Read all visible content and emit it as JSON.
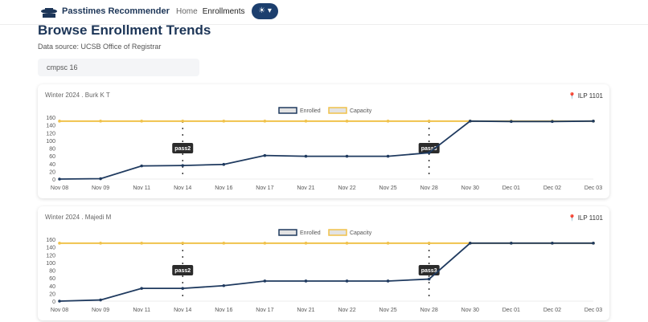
{
  "nav": {
    "brand": "Passtimes Recommender",
    "links": [
      "Home",
      "Enrollments"
    ],
    "theme_icon": "sun-icon"
  },
  "page": {
    "title": "Browse Enrollment Trends",
    "source": "Data source: UCSB Office of Registrar",
    "search_value": "cmpsc 16"
  },
  "colors": {
    "enrolled": "#1f3a5f",
    "capacity": "#f0c24b",
    "brand": "#1c3557"
  },
  "chart_data": [
    {
      "type": "line",
      "title": "Winter 2024 . Burk K T",
      "location": "ILP 1101",
      "legend": [
        "Enrolled",
        "Capacity"
      ],
      "legend_position": "top",
      "categories": [
        "Nov 08",
        "Nov 09",
        "Nov 11",
        "Nov 14",
        "Nov 16",
        "Nov 17",
        "Nov 21",
        "Nov 22",
        "Nov 25",
        "Nov 28",
        "Nov 30",
        "Dec 01",
        "Dec 02",
        "Dec 03"
      ],
      "yticks": [
        "0",
        "20",
        "40",
        "60",
        "80",
        "100",
        "120",
        "140",
        "160"
      ],
      "ylim": [
        0,
        160
      ],
      "series": [
        {
          "name": "Enrolled",
          "values": [
            0,
            1,
            34,
            35,
            38,
            61,
            59,
            59,
            59,
            68,
            150,
            149,
            149,
            150
          ]
        },
        {
          "name": "Capacity",
          "values": [
            150,
            150,
            150,
            150,
            150,
            150,
            150,
            150,
            150,
            150,
            150,
            150,
            150,
            150
          ]
        }
      ],
      "annotations": [
        {
          "label": "pass2",
          "x": "Nov 14"
        },
        {
          "label": "pass3",
          "x": "Nov 28"
        }
      ]
    },
    {
      "type": "line",
      "title": "Winter 2024 . Majedi M",
      "location": "ILP 1101",
      "legend": [
        "Enrolled",
        "Capacity"
      ],
      "legend_position": "top",
      "categories": [
        "Nov 08",
        "Nov 09",
        "Nov 11",
        "Nov 14",
        "Nov 16",
        "Nov 17",
        "Nov 21",
        "Nov 22",
        "Nov 25",
        "Nov 28",
        "Nov 30",
        "Dec 01",
        "Dec 02",
        "Dec 03"
      ],
      "yticks": [
        "0",
        "20",
        "40",
        "60",
        "80",
        "100",
        "120",
        "140",
        "160"
      ],
      "ylim": [
        0,
        160
      ],
      "series": [
        {
          "name": "Enrolled",
          "values": [
            0,
            3,
            33,
            33,
            40,
            52,
            52,
            52,
            52,
            57,
            150,
            150,
            150,
            150
          ]
        },
        {
          "name": "Capacity",
          "values": [
            150,
            150,
            150,
            150,
            150,
            150,
            150,
            150,
            150,
            150,
            150,
            150,
            150,
            150
          ]
        }
      ],
      "annotations": [
        {
          "label": "pass2",
          "x": "Nov 14"
        },
        {
          "label": "pass3",
          "x": "Nov 28"
        }
      ]
    }
  ]
}
